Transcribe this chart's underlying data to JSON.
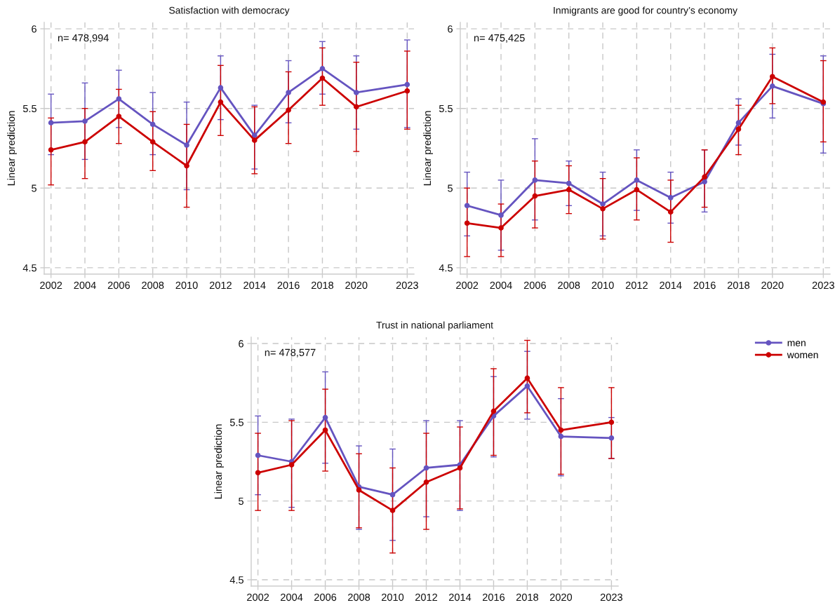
{
  "chart_data": [
    {
      "type": "line",
      "title": "Satisfaction with democracy",
      "ylabel": "Linear prediction",
      "annotations": [
        "n= 478,994"
      ],
      "x": [
        2002,
        2004,
        2006,
        2008,
        2010,
        2012,
        2014,
        2016,
        2018,
        2020,
        2023
      ],
      "series": [
        {
          "color": "#6554c0",
          "values": [
            5.41,
            5.42,
            5.56,
            5.4,
            5.27,
            5.63,
            5.33,
            5.6,
            5.75,
            5.6,
            5.65
          ],
          "errors": [
            [
              5.21,
              5.59
            ],
            [
              5.18,
              5.66
            ],
            [
              5.38,
              5.74
            ],
            [
              5.21,
              5.6
            ],
            [
              4.99,
              5.54
            ],
            [
              5.43,
              5.83
            ],
            [
              5.12,
              5.52
            ],
            [
              5.41,
              5.8
            ],
            [
              5.59,
              5.92
            ],
            [
              5.37,
              5.83
            ],
            [
              5.38,
              5.93
            ]
          ]
        },
        {
          "color": "#cc0000",
          "values": [
            5.24,
            5.29,
            5.45,
            5.29,
            5.14,
            5.54,
            5.3,
            5.49,
            5.69,
            5.51,
            5.61
          ],
          "errors": [
            [
              5.02,
              5.44
            ],
            [
              5.06,
              5.5
            ],
            [
              5.28,
              5.62
            ],
            [
              5.11,
              5.48
            ],
            [
              4.88,
              5.4
            ],
            [
              5.33,
              5.77
            ],
            [
              5.09,
              5.51
            ],
            [
              5.28,
              5.73
            ],
            [
              5.52,
              5.88
            ],
            [
              5.23,
              5.79
            ],
            [
              5.37,
              5.86
            ]
          ]
        }
      ],
      "xlim": [
        2001.6,
        2023.4
      ],
      "ylim": [
        4.46,
        6.04
      ],
      "xticks": [
        2002,
        2004,
        2006,
        2008,
        2010,
        2012,
        2014,
        2016,
        2018,
        2020,
        2023
      ],
      "yticks": [
        4.5,
        5,
        5.5,
        6
      ],
      "grid": true,
      "marker": "circle",
      "line_style": "solid"
    },
    {
      "type": "line",
      "title": "Inmigrants are good for country’s economy",
      "ylabel": "Linear prediction",
      "annotations": [
        "n= 475,425"
      ],
      "x": [
        2002,
        2004,
        2006,
        2008,
        2010,
        2012,
        2014,
        2016,
        2018,
        2020,
        2023
      ],
      "series": [
        {
          "color": "#6554c0",
          "values": [
            4.89,
            4.83,
            5.05,
            5.03,
            4.9,
            5.05,
            4.94,
            5.04,
            5.41,
            5.64,
            5.53
          ],
          "errors": [
            [
              4.7,
              5.1
            ],
            [
              4.61,
              5.05
            ],
            [
              4.8,
              5.31
            ],
            [
              4.89,
              5.17
            ],
            [
              4.7,
              5.1
            ],
            [
              4.86,
              5.24
            ],
            [
              4.78,
              5.1
            ],
            [
              4.85,
              5.24
            ],
            [
              5.27,
              5.56
            ],
            [
              5.44,
              5.84
            ],
            [
              5.22,
              5.83
            ]
          ]
        },
        {
          "color": "#cc0000",
          "values": [
            4.78,
            4.75,
            4.95,
            4.99,
            4.87,
            4.99,
            4.85,
            5.07,
            5.37,
            5.7,
            5.54
          ],
          "errors": [
            [
              4.57,
              5.0
            ],
            [
              4.57,
              4.9
            ],
            [
              4.75,
              5.17
            ],
            [
              4.84,
              5.14
            ],
            [
              4.68,
              5.06
            ],
            [
              4.8,
              5.19
            ],
            [
              4.66,
              5.05
            ],
            [
              4.88,
              5.24
            ],
            [
              5.21,
              5.52
            ],
            [
              5.53,
              5.88
            ],
            [
              5.29,
              5.8
            ]
          ]
        }
      ],
      "xlim": [
        2001.6,
        2023.4
      ],
      "ylim": [
        4.46,
        6.04
      ],
      "xticks": [
        2002,
        2004,
        2006,
        2008,
        2010,
        2012,
        2014,
        2016,
        2018,
        2020,
        2023
      ],
      "yticks": [
        4.5,
        5,
        5.5,
        6
      ],
      "grid": true,
      "marker": "circle",
      "line_style": "solid"
    },
    {
      "type": "line",
      "title": "Trust in national parliament",
      "ylabel": "Linear prediction",
      "annotations": [
        "n= 478,577"
      ],
      "x": [
        2002,
        2004,
        2006,
        2008,
        2010,
        2012,
        2014,
        2016,
        2018,
        2020,
        2023
      ],
      "series": [
        {
          "name": "men",
          "color": "#6554c0",
          "values": [
            5.29,
            5.25,
            5.53,
            5.09,
            5.04,
            5.21,
            5.23,
            5.54,
            5.73,
            5.41,
            5.4
          ],
          "errors": [
            [
              5.04,
              5.54
            ],
            [
              4.96,
              5.52
            ],
            [
              5.24,
              5.82
            ],
            [
              4.82,
              5.35
            ],
            [
              4.75,
              5.33
            ],
            [
              4.9,
              5.51
            ],
            [
              4.94,
              5.51
            ],
            [
              5.28,
              5.79
            ],
            [
              5.52,
              5.95
            ],
            [
              5.16,
              5.65
            ],
            [
              5.27,
              5.53
            ]
          ]
        },
        {
          "name": "women",
          "color": "#cc0000",
          "values": [
            5.18,
            5.23,
            5.45,
            5.07,
            4.94,
            5.12,
            5.21,
            5.57,
            5.78,
            5.45,
            5.5
          ],
          "errors": [
            [
              4.94,
              5.43
            ],
            [
              4.94,
              5.51
            ],
            [
              5.19,
              5.71
            ],
            [
              4.83,
              5.3
            ],
            [
              4.67,
              5.21
            ],
            [
              4.82,
              5.43
            ],
            [
              4.95,
              5.47
            ],
            [
              5.29,
              5.84
            ],
            [
              5.56,
              6.02
            ],
            [
              5.17,
              5.72
            ],
            [
              5.27,
              5.72
            ]
          ]
        }
      ],
      "xlim": [
        2001.6,
        2023.4
      ],
      "ylim": [
        4.46,
        6.04
      ],
      "xticks": [
        2002,
        2004,
        2006,
        2008,
        2010,
        2012,
        2014,
        2016,
        2018,
        2020,
        2023
      ],
      "yticks": [
        4.5,
        5,
        5.5,
        6
      ],
      "grid": true,
      "marker": "circle",
      "line_style": "solid",
      "legend": "right"
    }
  ]
}
